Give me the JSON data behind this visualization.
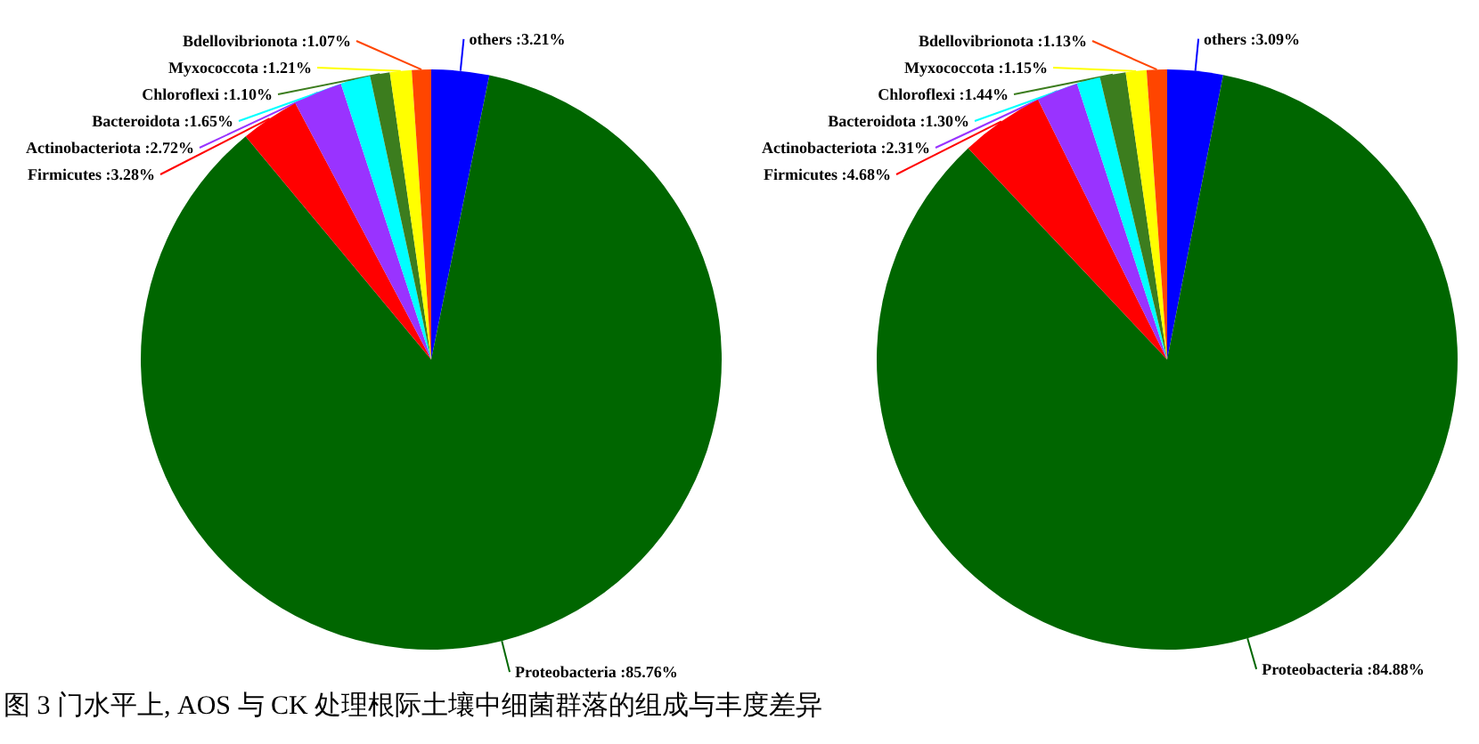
{
  "chart_data": [
    {
      "type": "pie",
      "categories": [
        "others",
        "Proteobacteria",
        "Firmicutes",
        "Actinobacteriota",
        "Bacteroidota",
        "Chloroflexi",
        "Myxococcota",
        "Bdellovibrionota"
      ],
      "values": [
        3.21,
        85.76,
        3.28,
        2.72,
        1.65,
        1.1,
        1.21,
        1.07
      ],
      "value_labels": [
        ":3.21%",
        ":85.76%",
        ":3.28%",
        ":2.72%",
        ":1.65%",
        ":1.10%",
        ":1.21%",
        ":1.07%"
      ],
      "colors": [
        "#0000ff",
        "#006600",
        "#ff0000",
        "#9933ff",
        "#00ffff",
        "#3c7d1e",
        "#ffff00",
        "#ff4500"
      ],
      "annotations": [
        "图 3 门水平上, AOS 与 CK 处理根际土壤中细菌群落的组成与丰度差异"
      ]
    },
    {
      "type": "pie",
      "categories": [
        "others",
        "Proteobacteria",
        "Firmicutes",
        "Actinobacteriota",
        "Bacteroidota",
        "Chloroflexi",
        "Myxococcota",
        "Bdellovibrionota"
      ],
      "values": [
        3.09,
        84.88,
        4.68,
        2.31,
        1.3,
        1.44,
        1.15,
        1.13
      ],
      "value_labels": [
        ":3.09%",
        ":84.88%",
        ":4.68%",
        ":2.31%",
        ":1.30%",
        ":1.44%",
        ":1.15%",
        ":1.13%"
      ],
      "colors": [
        "#0000ff",
        "#006600",
        "#ff0000",
        "#9933ff",
        "#00ffff",
        "#3c7d1e",
        "#ffff00",
        "#ff4500"
      ]
    }
  ]
}
